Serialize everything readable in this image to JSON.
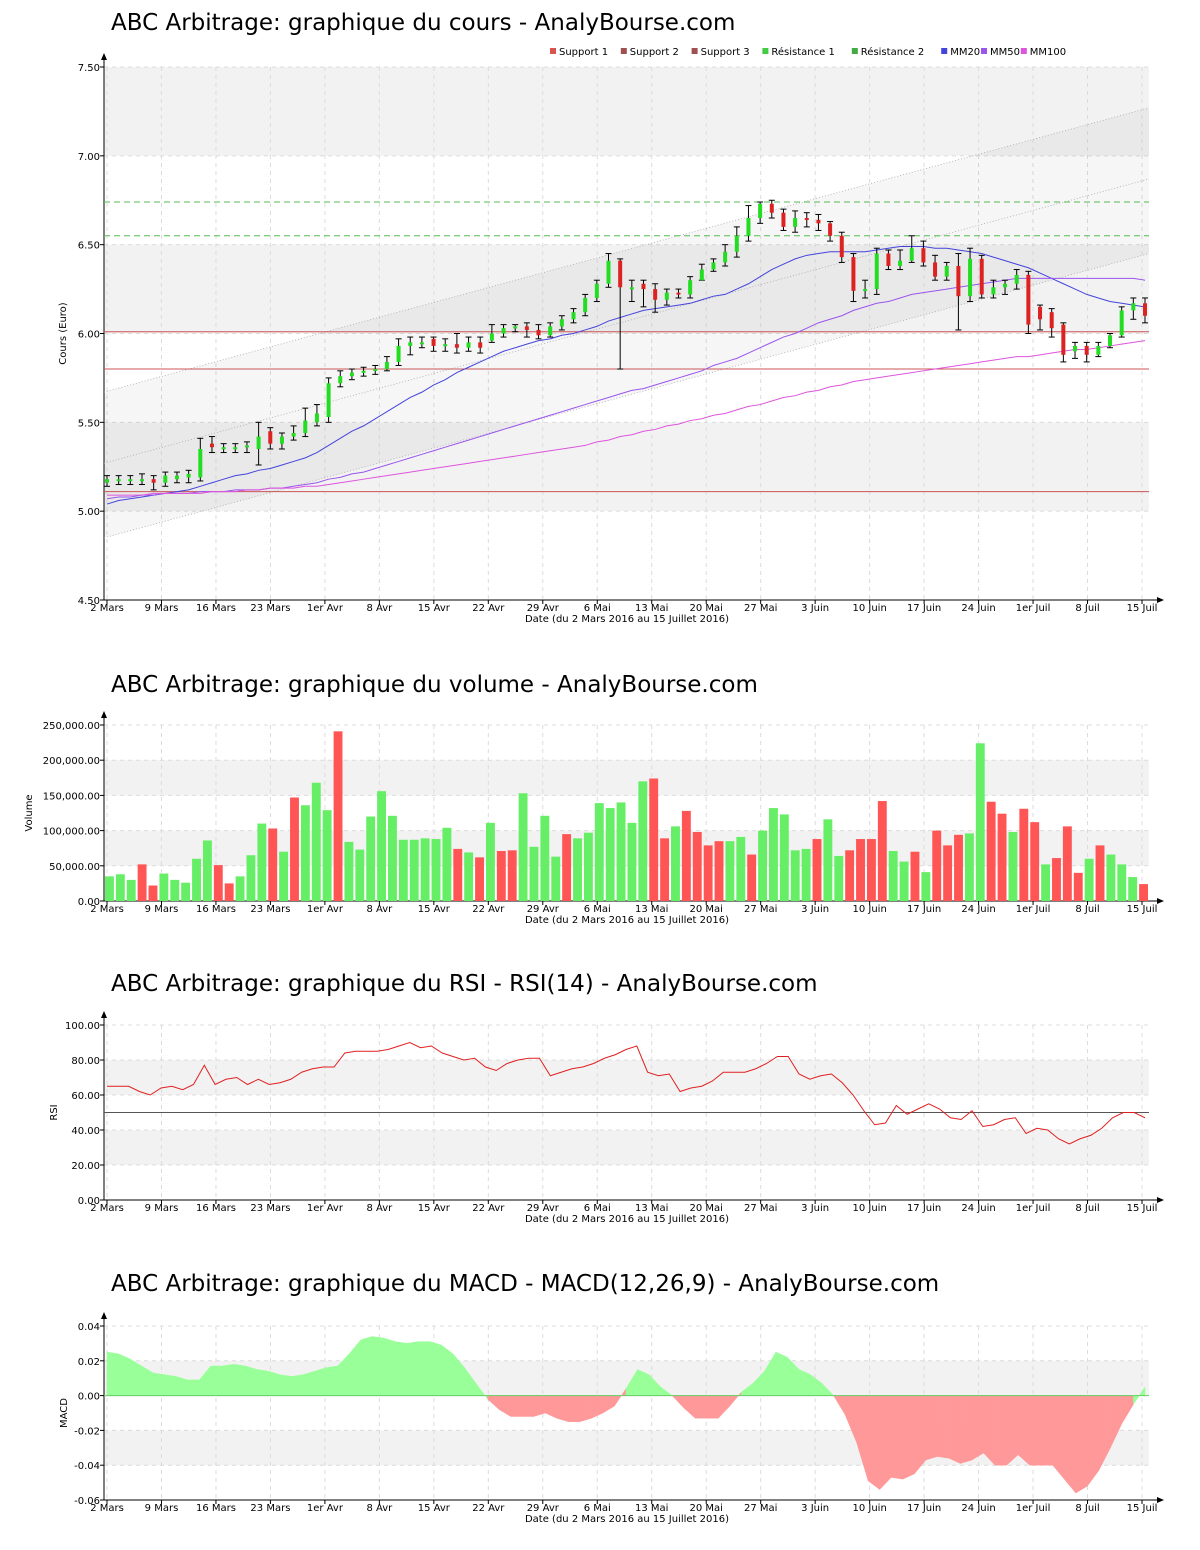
{
  "chart_data": [
    {
      "type": "candlestick",
      "title": "ABC Arbitrage: graphique du cours - AnalyBourse.com",
      "xlabel": "Date (du 2 Mars 2016 au 15 Juillet 2016)",
      "ylabel": "Cours (Euro)",
      "x_ticks": [
        "2 Mars",
        "9 Mars",
        "16 Mars",
        "23 Mars",
        "1er Avr",
        "8 Avr",
        "15 Avr",
        "22 Avr",
        "29 Avr",
        "6 Mai",
        "13 Mai",
        "20 Mai",
        "27 Mai",
        "3 Juin",
        "10 Juin",
        "17 Juin",
        "24 Juin",
        "1er Juil",
        "8 Juil",
        "15 Juil"
      ],
      "y_ticks": [
        "4.50",
        "5.00",
        "5.50",
        "6.00",
        "6.50",
        "7.00",
        "7.50"
      ],
      "ylim": [
        4.5,
        7.5
      ],
      "legend": {
        "position": "top-right",
        "items": [
          {
            "label": "Support 1",
            "color": "#d9534f"
          },
          {
            "label": "Support 2",
            "color": "#a05050"
          },
          {
            "label": "Support 3",
            "color": "#a05050"
          },
          {
            "label": "Résistance 1",
            "color": "#44cc44"
          },
          {
            "label": "Résistance 2",
            "color": "#44aa44"
          },
          {
            "label": "MM20",
            "color": "#4444dd"
          },
          {
            "label": "MM50",
            "color": "#9955ee"
          },
          {
            "label": "MM100",
            "color": "#dd55dd"
          }
        ]
      },
      "levels": {
        "support_1": 6.01,
        "support_2": 5.8,
        "support_3": 5.11,
        "resistance_1": 6.55,
        "resistance_2": 6.74
      },
      "trend_channel": {
        "upper": [
          5.67,
          7.27
        ],
        "middle": [
          5.27,
          6.87
        ],
        "lower": [
          4.85,
          6.45
        ]
      },
      "candles_close": [
        5.18,
        5.18,
        5.18,
        5.18,
        5.16,
        5.2,
        5.2,
        5.21,
        5.35,
        5.36,
        5.36,
        5.36,
        5.37,
        5.42,
        5.38,
        5.42,
        5.44,
        5.51,
        5.55,
        5.72,
        5.76,
        5.78,
        5.79,
        5.8,
        5.84,
        5.93,
        5.95,
        5.95,
        5.93,
        5.94,
        5.92,
        5.95,
        5.92,
        6.0,
        6.03,
        6.04,
        6.02,
        5.99,
        6.04,
        6.08,
        6.12,
        6.2,
        6.28,
        6.41,
        6.26,
        6.26,
        6.25,
        6.19,
        6.23,
        6.22,
        6.3,
        6.36,
        6.4,
        6.46,
        6.55,
        6.65,
        6.73,
        6.68,
        6.6,
        6.65,
        6.64,
        6.62,
        6.55,
        6.43,
        6.24,
        6.25,
        6.45,
        6.38,
        6.41,
        6.48,
        6.4,
        6.32,
        6.38,
        6.21,
        6.42,
        6.22,
        6.26,
        6.28,
        6.33,
        6.05,
        6.08,
        6.03,
        5.88,
        5.93,
        5.88,
        5.93,
        5.99,
        6.13,
        6.17,
        6.1
      ],
      "candles_open": [
        5.16,
        5.18,
        5.18,
        5.18,
        5.18,
        5.16,
        5.18,
        5.19,
        5.19,
        5.38,
        5.36,
        5.36,
        5.36,
        5.35,
        5.45,
        5.38,
        5.42,
        5.44,
        5.5,
        5.53,
        5.72,
        5.76,
        5.78,
        5.79,
        5.8,
        5.84,
        5.93,
        5.95,
        5.97,
        5.93,
        5.94,
        5.92,
        5.95,
        5.96,
        6.0,
        6.03,
        6.04,
        6.02,
        5.99,
        6.04,
        6.08,
        6.12,
        6.2,
        6.28,
        6.41,
        6.26,
        6.28,
        6.25,
        6.19,
        6.23,
        6.22,
        6.3,
        6.36,
        6.4,
        6.46,
        6.55,
        6.65,
        6.73,
        6.68,
        6.6,
        6.65,
        6.64,
        6.62,
        6.55,
        6.43,
        6.24,
        6.25,
        6.45,
        6.38,
        6.41,
        6.48,
        6.4,
        6.32,
        6.38,
        6.21,
        6.42,
        6.22,
        6.26,
        6.28,
        6.33,
        6.15,
        6.12,
        6.05,
        5.9,
        5.93,
        5.88,
        5.93,
        5.99,
        6.13,
        6.17
      ],
      "candles_high": [
        5.2,
        5.2,
        5.2,
        5.21,
        5.2,
        5.22,
        5.22,
        5.23,
        5.41,
        5.42,
        5.38,
        5.38,
        5.39,
        5.5,
        5.47,
        5.44,
        5.48,
        5.58,
        5.6,
        5.75,
        5.79,
        5.8,
        5.81,
        5.82,
        5.87,
        5.97,
        5.98,
        5.98,
        5.98,
        5.97,
        6.0,
        5.98,
        5.98,
        6.05,
        6.05,
        6.05,
        6.06,
        6.05,
        6.06,
        6.1,
        6.14,
        6.22,
        6.3,
        6.45,
        6.42,
        6.3,
        6.3,
        6.28,
        6.25,
        6.25,
        6.32,
        6.39,
        6.42,
        6.5,
        6.6,
        6.72,
        6.74,
        6.75,
        6.7,
        6.69,
        6.68,
        6.67,
        6.63,
        6.57,
        6.45,
        6.3,
        6.48,
        6.47,
        6.47,
        6.55,
        6.52,
        6.44,
        6.4,
        6.45,
        6.48,
        6.44,
        6.3,
        6.3,
        6.36,
        6.35,
        6.16,
        6.14,
        6.06,
        5.95,
        5.95,
        5.95,
        6.0,
        6.15,
        6.2,
        6.2
      ],
      "candles_low": [
        5.14,
        5.15,
        5.15,
        5.15,
        5.12,
        5.14,
        5.16,
        5.16,
        5.17,
        5.33,
        5.33,
        5.33,
        5.33,
        5.26,
        5.35,
        5.35,
        5.4,
        5.42,
        5.48,
        5.5,
        5.7,
        5.74,
        5.76,
        5.77,
        5.79,
        5.82,
        5.88,
        5.92,
        5.9,
        5.9,
        5.89,
        5.9,
        5.89,
        5.95,
        5.98,
        6.01,
        5.98,
        5.97,
        5.98,
        6.02,
        6.06,
        6.1,
        6.18,
        6.26,
        5.8,
        6.18,
        6.15,
        6.12,
        6.16,
        6.2,
        6.2,
        6.3,
        6.35,
        6.38,
        6.43,
        6.52,
        6.62,
        6.65,
        6.58,
        6.57,
        6.6,
        6.58,
        6.52,
        6.4,
        6.18,
        6.2,
        6.22,
        6.36,
        6.36,
        6.4,
        6.38,
        6.3,
        6.3,
        6.02,
        6.18,
        6.2,
        6.2,
        6.22,
        6.25,
        6.0,
        6.02,
        5.98,
        5.84,
        5.86,
        5.84,
        5.87,
        5.92,
        5.98,
        6.08,
        6.06
      ],
      "mm20": [
        5.04,
        5.06,
        5.07,
        5.08,
        5.09,
        5.1,
        5.11,
        5.12,
        5.14,
        5.16,
        5.18,
        5.2,
        5.21,
        5.23,
        5.24,
        5.26,
        5.28,
        5.3,
        5.33,
        5.37,
        5.41,
        5.45,
        5.48,
        5.52,
        5.56,
        5.6,
        5.64,
        5.67,
        5.71,
        5.74,
        5.78,
        5.81,
        5.84,
        5.87,
        5.9,
        5.92,
        5.94,
        5.96,
        5.97,
        5.99,
        6.0,
        6.02,
        6.04,
        6.07,
        6.09,
        6.11,
        6.13,
        6.14,
        6.15,
        6.16,
        6.17,
        6.19,
        6.21,
        6.22,
        6.25,
        6.28,
        6.32,
        6.36,
        6.39,
        6.42,
        6.44,
        6.45,
        6.46,
        6.46,
        6.46,
        6.46,
        6.47,
        6.48,
        6.49,
        6.49,
        6.49,
        6.48,
        6.48,
        6.47,
        6.46,
        6.45,
        6.43,
        6.41,
        6.39,
        6.37,
        6.34,
        6.31,
        6.28,
        6.25,
        6.22,
        6.2,
        6.18,
        6.17,
        6.16,
        6.15
      ],
      "mm50": [
        5.07,
        5.08,
        5.08,
        5.09,
        5.09,
        5.1,
        5.1,
        5.1,
        5.11,
        5.11,
        5.11,
        5.12,
        5.12,
        5.12,
        5.13,
        5.13,
        5.14,
        5.15,
        5.16,
        5.18,
        5.19,
        5.21,
        5.22,
        5.24,
        5.26,
        5.28,
        5.3,
        5.32,
        5.34,
        5.36,
        5.38,
        5.4,
        5.42,
        5.44,
        5.46,
        5.48,
        5.5,
        5.52,
        5.54,
        5.56,
        5.58,
        5.6,
        5.62,
        5.64,
        5.66,
        5.68,
        5.69,
        5.71,
        5.73,
        5.75,
        5.77,
        5.79,
        5.82,
        5.84,
        5.86,
        5.89,
        5.92,
        5.95,
        5.98,
        6.0,
        6.03,
        6.06,
        6.08,
        6.1,
        6.13,
        6.15,
        6.17,
        6.18,
        6.2,
        6.22,
        6.23,
        6.24,
        6.25,
        6.26,
        6.27,
        6.28,
        6.29,
        6.3,
        6.31,
        6.31,
        6.31,
        6.31,
        6.31,
        6.31,
        6.31,
        6.31,
        6.31,
        6.31,
        6.31,
        6.3
      ],
      "mm100": [
        5.09,
        5.09,
        5.09,
        5.09,
        5.1,
        5.1,
        5.1,
        5.1,
        5.1,
        5.11,
        5.11,
        5.11,
        5.12,
        5.12,
        5.13,
        5.13,
        5.13,
        5.14,
        5.14,
        5.15,
        5.16,
        5.17,
        5.18,
        5.19,
        5.2,
        5.21,
        5.22,
        5.23,
        5.24,
        5.25,
        5.26,
        5.27,
        5.28,
        5.29,
        5.3,
        5.31,
        5.32,
        5.33,
        5.34,
        5.35,
        5.36,
        5.37,
        5.39,
        5.4,
        5.42,
        5.43,
        5.45,
        5.46,
        5.48,
        5.49,
        5.51,
        5.52,
        5.54,
        5.55,
        5.57,
        5.59,
        5.6,
        5.62,
        5.64,
        5.65,
        5.67,
        5.68,
        5.7,
        5.71,
        5.73,
        5.74,
        5.75,
        5.76,
        5.77,
        5.78,
        5.79,
        5.8,
        5.81,
        5.82,
        5.83,
        5.84,
        5.85,
        5.86,
        5.87,
        5.87,
        5.88,
        5.89,
        5.9,
        5.91,
        5.91,
        5.92,
        5.93,
        5.94,
        5.95,
        5.96
      ]
    },
    {
      "type": "bar",
      "title": "ABC Arbitrage: graphique du volume - AnalyBourse.com",
      "xlabel": "Date (du 2 Mars 2016 au 15 Juillet 2016)",
      "ylabel": "Volume",
      "x_ticks": [
        "2 Mars",
        "9 Mars",
        "16 Mars",
        "23 Mars",
        "1er Avr",
        "8 Avr",
        "15 Avr",
        "22 Avr",
        "29 Avr",
        "6 Mai",
        "13 Mai",
        "20 Mai",
        "27 Mai",
        "3 Juin",
        "10 Juin",
        "17 Juin",
        "24 Juin",
        "1er Juil",
        "8 Juil",
        "15 Juil"
      ],
      "y_ticks": [
        "0.00",
        "50,000.00",
        "100,000.00",
        "150,000.00",
        "200,000.00",
        "250,000.00"
      ],
      "ylim": [
        0,
        250000
      ],
      "values": [
        35000,
        38000,
        30000,
        52000,
        22000,
        39000,
        30000,
        26000,
        60000,
        86000,
        51000,
        25000,
        35000,
        65000,
        110000,
        103000,
        70000,
        147000,
        136000,
        168000,
        129000,
        241000,
        84000,
        73000,
        120000,
        156000,
        121000,
        87000,
        87000,
        89000,
        88000,
        104000,
        74000,
        69000,
        62000,
        111000,
        71000,
        72000,
        153000,
        77000,
        121000,
        63000,
        95000,
        89000,
        97000,
        139000,
        132000,
        140000,
        111000,
        170000,
        174000,
        89000,
        106000,
        128000,
        98000,
        79000,
        85000,
        85000,
        91000,
        66000,
        100000,
        132000,
        123000,
        72000,
        74000,
        88000,
        116000,
        64000,
        72000,
        88000,
        88000,
        142000,
        71000,
        56000,
        70000,
        41000,
        100000,
        79000,
        94000,
        96000,
        224000,
        141000,
        124000,
        98000,
        131000,
        112000,
        52000,
        61000,
        106000,
        40000,
        60000,
        79000,
        66000,
        52000,
        34000,
        24000
      ],
      "colors": [
        "up",
        "up",
        "up",
        "down",
        "down",
        "up",
        "up",
        "up",
        "up",
        "up",
        "down",
        "down",
        "up",
        "up",
        "up",
        "down",
        "up",
        "down",
        "up",
        "up",
        "up",
        "down",
        "up",
        "up",
        "up",
        "up",
        "up",
        "up",
        "up",
        "up",
        "up",
        "up",
        "down",
        "up",
        "down",
        "up",
        "down",
        "down",
        "up",
        "up",
        "up",
        "up",
        "down",
        "up",
        "up",
        "up",
        "up",
        "up",
        "up",
        "up",
        "down",
        "down",
        "up",
        "down",
        "down",
        "down",
        "down",
        "up",
        "up",
        "down",
        "up",
        "up",
        "up",
        "up",
        "up",
        "down",
        "up",
        "up",
        "down",
        "down",
        "down",
        "down",
        "up",
        "up",
        "down",
        "up",
        "down",
        "down",
        "down",
        "up",
        "up",
        "down",
        "down",
        "up",
        "down",
        "down",
        "up",
        "down",
        "down",
        "down",
        "up",
        "down",
        "up",
        "up",
        "up",
        "down"
      ]
    },
    {
      "type": "line",
      "title": "ABC Arbitrage: graphique du RSI - RSI(14) - AnalyBourse.com",
      "xlabel": "Date (du 2 Mars 2016 au 15 Juillet 2016)",
      "ylabel": "RSI",
      "x_ticks": [
        "2 Mars",
        "9 Mars",
        "16 Mars",
        "23 Mars",
        "1er Avr",
        "8 Avr",
        "15 Avr",
        "22 Avr",
        "29 Avr",
        "6 Mai",
        "13 Mai",
        "20 Mai",
        "27 Mai",
        "3 Juin",
        "10 Juin",
        "17 Juin",
        "24 Juin",
        "1er Juil",
        "8 Juil",
        "15 Juil"
      ],
      "y_ticks": [
        "0.00",
        "20.00",
        "40.00",
        "60.00",
        "80.00",
        "100.00"
      ],
      "ylim": [
        0,
        100
      ],
      "reference_line": 50,
      "values": [
        65,
        65,
        65,
        62,
        60,
        64,
        65,
        63,
        66,
        77,
        66,
        69,
        70,
        66,
        69,
        66,
        67,
        69,
        73,
        75,
        76,
        76,
        84,
        85,
        85,
        85,
        86,
        88,
        90,
        87,
        88,
        84,
        82,
        80,
        81,
        76,
        74,
        78,
        80,
        81,
        81,
        71,
        73,
        75,
        76,
        78,
        81,
        83,
        86,
        88,
        73,
        71,
        72,
        62,
        64,
        65,
        68,
        73,
        73,
        73,
        75,
        78,
        82,
        82,
        72,
        69,
        71,
        72,
        67,
        60,
        51,
        43,
        44,
        54,
        49,
        52,
        55,
        52,
        47,
        46,
        51,
        42,
        43,
        46,
        47,
        38,
        41,
        40,
        35,
        32,
        35,
        37,
        41,
        47,
        50,
        50,
        47
      ],
      "color": "#e02020"
    },
    {
      "type": "area",
      "title": "ABC Arbitrage: graphique du MACD - MACD(12,26,9) - AnalyBourse.com",
      "xlabel": "Date (du 2 Mars 2016 au 15 Juillet 2016)",
      "ylabel": "MACD",
      "x_ticks": [
        "2 Mars",
        "9 Mars",
        "16 Mars",
        "23 Mars",
        "1er Avr",
        "8 Avr",
        "15 Avr",
        "22 Avr",
        "29 Avr",
        "6 Mai",
        "13 Mai",
        "20 Mai",
        "27 Mai",
        "3 Juin",
        "10 Juin",
        "17 Juin",
        "24 Juin",
        "1er Juil",
        "8 Juil",
        "15 Juil"
      ],
      "y_ticks": [
        "-0.06",
        "-0.04",
        "-0.02",
        "0.00",
        "0.02",
        "0.04"
      ],
      "ylim": [
        -0.06,
        0.04
      ],
      "values": [
        0.025,
        0.024,
        0.021,
        0.017,
        0.013,
        0.012,
        0.011,
        0.009,
        0.009,
        0.017,
        0.017,
        0.018,
        0.017,
        0.015,
        0.014,
        0.012,
        0.011,
        0.012,
        0.014,
        0.016,
        0.017,
        0.024,
        0.032,
        0.034,
        0.033,
        0.031,
        0.03,
        0.031,
        0.031,
        0.029,
        0.024,
        0.016,
        0.007,
        -0.002,
        -0.008,
        -0.012,
        -0.012,
        -0.012,
        -0.01,
        -0.013,
        -0.015,
        -0.015,
        -0.013,
        -0.01,
        -0.006,
        0.004,
        0.015,
        0.012,
        0.005,
        0.0,
        -0.007,
        -0.013,
        -0.013,
        -0.013,
        -0.006,
        0.002,
        0.007,
        0.014,
        0.025,
        0.022,
        0.015,
        0.012,
        0.007,
        0.0,
        -0.011,
        -0.027,
        -0.049,
        -0.054,
        -0.047,
        -0.048,
        -0.045,
        -0.037,
        -0.035,
        -0.036,
        -0.039,
        -0.037,
        -0.033,
        -0.04,
        -0.04,
        -0.034,
        -0.04,
        -0.04,
        -0.04,
        -0.048,
        -0.056,
        -0.052,
        -0.043,
        -0.03,
        -0.016,
        -0.005,
        0.005
      ],
      "positive_color": "#99ff99",
      "negative_color": "#ff9999"
    }
  ]
}
